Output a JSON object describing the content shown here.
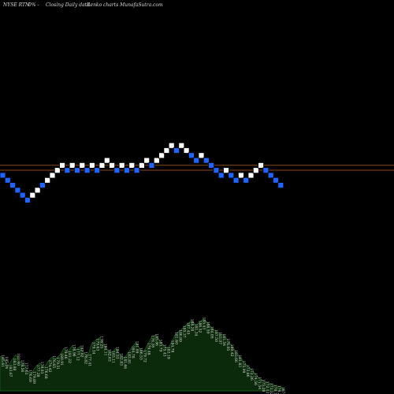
{
  "header": {
    "ticker": "NYSE RTN",
    "change": "0% -",
    "chart_type": "Closing Daily data",
    "style": "Renko",
    "source": "charts MunafaSutra.com"
  },
  "colors": {
    "background": "#000000",
    "up_brick": "#ffffff",
    "down_brick": "#1e64ff",
    "level_line": "#8a4a1a",
    "volume_fill": "#0b2a0b",
    "volume_edge": "#1d5a1d"
  },
  "chart_data": {
    "type": "renko",
    "reference_levels": [
      0.0,
      1.0
    ],
    "bricks": [
      {
        "dir": "down",
        "level": 0.0
      },
      {
        "dir": "down",
        "level": -1.0
      },
      {
        "dir": "down",
        "level": -2.0
      },
      {
        "dir": "down",
        "level": -3.0
      },
      {
        "dir": "down",
        "level": -4.0
      },
      {
        "dir": "down",
        "level": -5.0
      },
      {
        "dir": "up",
        "level": -4.0
      },
      {
        "dir": "up",
        "level": -3.0
      },
      {
        "dir": "down",
        "level": -2.0
      },
      {
        "dir": "up",
        "level": -1.0
      },
      {
        "dir": "up",
        "level": 0.0
      },
      {
        "dir": "up",
        "level": 1.0
      },
      {
        "dir": "up",
        "level": 2.0
      },
      {
        "dir": "down",
        "level": 1.0
      },
      {
        "dir": "up",
        "level": 2.0
      },
      {
        "dir": "down",
        "level": 1.0
      },
      {
        "dir": "up",
        "level": 2.0
      },
      {
        "dir": "down",
        "level": 1.0
      },
      {
        "dir": "up",
        "level": 2.0
      },
      {
        "dir": "down",
        "level": 1.0
      },
      {
        "dir": "up",
        "level": 2.0
      },
      {
        "dir": "up",
        "level": 3.0
      },
      {
        "dir": "up",
        "level": 2.0
      },
      {
        "dir": "down",
        "level": 1.0
      },
      {
        "dir": "up",
        "level": 2.0
      },
      {
        "dir": "down",
        "level": 1.0
      },
      {
        "dir": "up",
        "level": 2.0
      },
      {
        "dir": "down",
        "level": 1.0
      },
      {
        "dir": "up",
        "level": 2.0
      },
      {
        "dir": "up",
        "level": 3.0
      },
      {
        "dir": "down",
        "level": 2.0
      },
      {
        "dir": "up",
        "level": 3.0
      },
      {
        "dir": "up",
        "level": 4.0
      },
      {
        "dir": "up",
        "level": 5.0
      },
      {
        "dir": "up",
        "level": 6.0
      },
      {
        "dir": "down",
        "level": 5.0
      },
      {
        "dir": "up",
        "level": 6.0
      },
      {
        "dir": "up",
        "level": 5.0
      },
      {
        "dir": "down",
        "level": 4.0
      },
      {
        "dir": "down",
        "level": 3.0
      },
      {
        "dir": "up",
        "level": 4.0
      },
      {
        "dir": "down",
        "level": 3.0
      },
      {
        "dir": "down",
        "level": 2.0
      },
      {
        "dir": "down",
        "level": 1.0
      },
      {
        "dir": "down",
        "level": 0.0
      },
      {
        "dir": "up",
        "level": 1.0
      },
      {
        "dir": "down",
        "level": 0.0
      },
      {
        "dir": "down",
        "level": -1.0
      },
      {
        "dir": "up",
        "level": 0.0
      },
      {
        "dir": "down",
        "level": -1.0
      },
      {
        "dir": "up",
        "level": 0.0
      },
      {
        "dir": "up",
        "level": 1.0
      },
      {
        "dir": "up",
        "level": 2.0
      },
      {
        "dir": "down",
        "level": 1.0
      },
      {
        "dir": "down",
        "level": 0.0
      },
      {
        "dir": "down",
        "level": -1.0
      },
      {
        "dir": "down",
        "level": -2.0
      }
    ],
    "volume_labels": [
      "185.61",
      "185.24",
      "183.67",
      "183.08",
      "181.40",
      "178.56",
      "177.63",
      "176.69",
      "179.89",
      "177.28",
      "179.03",
      "176.68",
      "174.42",
      "176.65",
      "179.51",
      "180.91",
      "179.46",
      "181.22",
      "178.96",
      "177.12",
      "182.82",
      "178.82",
      "177.41",
      "179.34",
      "179.63",
      "178.25",
      "184.11",
      "182.63",
      "183.11",
      "184.53",
      "182.83",
      "181.66",
      "183.81",
      "184.78",
      "181.09",
      "186.53",
      "179.72",
      "179.48",
      "176.28",
      "185.06",
      "183.79",
      "175.43",
      "183.19",
      "184.78",
      "181.60",
      "186.89",
      "185.37",
      "187.45",
      "188.28",
      "181.34",
      "186.52",
      "185.43",
      "188.59",
      "184.05",
      "187.50",
      "183.07",
      "181.54",
      "176.05",
      "180.42",
      "183.66",
      "181.83",
      "175.99",
      "173.86",
      "172.26",
      "174.56",
      "171.54",
      "175.28",
      "172.13",
      "173.32",
      "170.72",
      "174.28",
      "167.13"
    ],
    "volume_profile": [
      0.42,
      0.4,
      0.3,
      0.38,
      0.44,
      0.36,
      0.33,
      0.24,
      0.22,
      0.3,
      0.34,
      0.28,
      0.36,
      0.41,
      0.39,
      0.44,
      0.52,
      0.47,
      0.55,
      0.5,
      0.54,
      0.46,
      0.43,
      0.58,
      0.62,
      0.65,
      0.56,
      0.49,
      0.47,
      0.52,
      0.44,
      0.4,
      0.46,
      0.53,
      0.59,
      0.51,
      0.48,
      0.57,
      0.66,
      0.68,
      0.61,
      0.55,
      0.52,
      0.6,
      0.7,
      0.73,
      0.78,
      0.82,
      0.86,
      0.8,
      0.84,
      0.88,
      0.83,
      0.77,
      0.73,
      0.7,
      0.68,
      0.62,
      0.55,
      0.48,
      0.42,
      0.35,
      0.3,
      0.26,
      0.2,
      0.15,
      0.12,
      0.1,
      0.08,
      0.06,
      0.05,
      0.03
    ]
  }
}
